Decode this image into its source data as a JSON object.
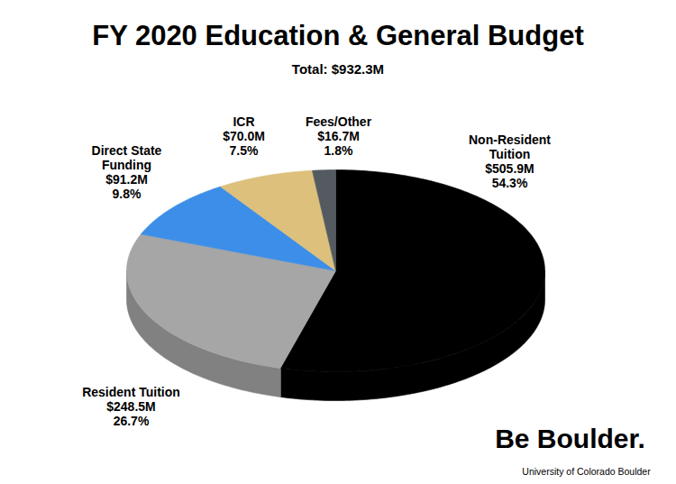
{
  "chart_data": {
    "type": "pie",
    "title": "FY 2020 Education & General Budget",
    "subtitle": "Total: $932.3M",
    "total": 932.3,
    "categories": [
      "Non-Resident Tuition",
      "Resident Tuition",
      "Direct State Funding",
      "ICR",
      "Fees/Other"
    ],
    "values": [
      505.9,
      248.5,
      91.2,
      70.0,
      16.7
    ],
    "value_labels": [
      "$505.9M",
      "$248.5M",
      "$91.2M",
      "$70.0M",
      "$16.7M"
    ],
    "percents": [
      54.3,
      26.7,
      9.8,
      7.5,
      1.8
    ],
    "percent_labels": [
      "54.3%",
      "26.7%",
      "9.8%",
      "7.5%",
      "1.8%"
    ],
    "colors": [
      "#000000",
      "#a6a6a6",
      "#3d8ee8",
      "#dcc07c",
      "#545b60"
    ],
    "data_labels": true,
    "annotations": [
      "Be Boulder.",
      "University of Colorado Boulder"
    ]
  }
}
